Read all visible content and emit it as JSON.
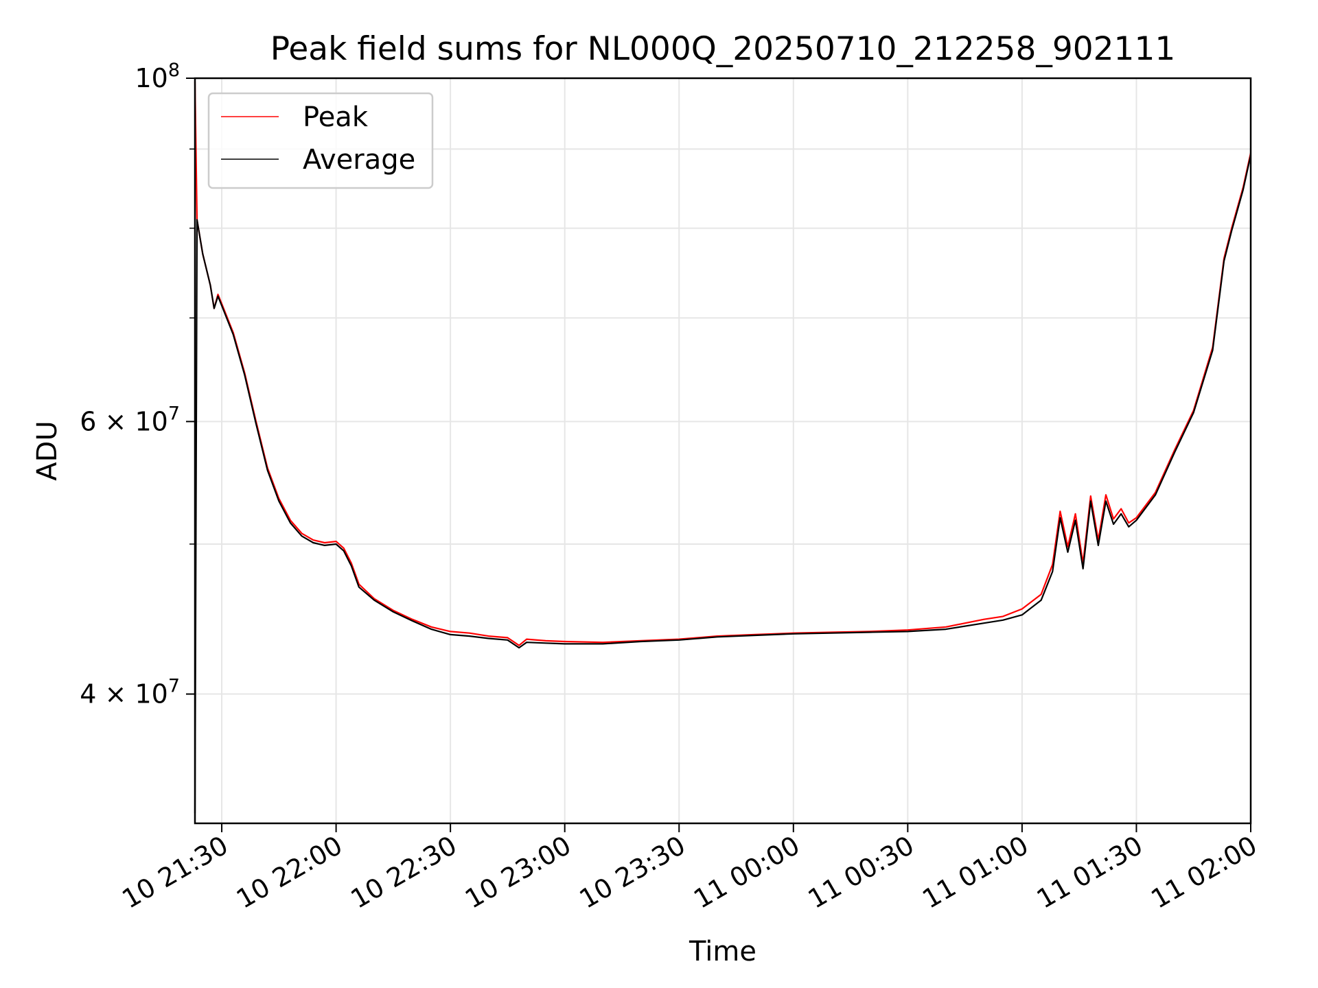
{
  "chart_data": {
    "type": "line",
    "title": "Peak field sums for NL000Q_20250710_212258_902111",
    "xlabel": "Time",
    "ylabel": "ADU",
    "yscale": "log",
    "ylim": [
      33000000,
      100000000
    ],
    "xlim": [
      "2025-07-10 21:22:58",
      "2025-07-11 02:00:00"
    ],
    "grid": true,
    "legend_placement": "top-left",
    "x_tick_labels": [
      "10 21:30",
      "10 22:00",
      "10 22:30",
      "10 23:00",
      "10 23:30",
      "11 00:00",
      "11 00:30",
      "11 01:00",
      "11 01:30",
      "11 02:00"
    ],
    "x_tick_values": [
      "2025-07-10 21:30",
      "2025-07-10 22:00",
      "2025-07-10 22:30",
      "2025-07-10 23:00",
      "2025-07-10 23:30",
      "2025-07-11 00:00",
      "2025-07-11 00:30",
      "2025-07-11 01:00",
      "2025-07-11 01:30",
      "2025-07-11 02:00"
    ],
    "y_major_ticks": [
      {
        "value": 40000000,
        "mantissa": "4",
        "exp": "7"
      },
      {
        "value": 60000000,
        "mantissa": "6",
        "exp": "7"
      },
      {
        "value": 100000000,
        "mantissa": "",
        "exp": "8"
      }
    ],
    "y_minor_ticks": [
      50000000,
      70000000,
      80000000,
      90000000
    ],
    "series": [
      {
        "name": "Peak",
        "color": "#ff0000",
        "x": [
          "2025-07-10 21:22:58",
          "2025-07-10 21:23:30",
          "2025-07-10 21:25",
          "2025-07-10 21:27",
          "2025-07-10 21:28",
          "2025-07-10 21:29",
          "2025-07-10 21:30",
          "2025-07-10 21:33",
          "2025-07-10 21:36",
          "2025-07-10 21:39",
          "2025-07-10 21:42",
          "2025-07-10 21:45",
          "2025-07-10 21:48",
          "2025-07-10 21:51",
          "2025-07-10 21:54",
          "2025-07-10 21:57",
          "2025-07-10 22:00",
          "2025-07-10 22:02",
          "2025-07-10 22:04",
          "2025-07-10 22:06",
          "2025-07-10 22:10",
          "2025-07-10 22:15",
          "2025-07-10 22:20",
          "2025-07-10 22:25",
          "2025-07-10 22:30",
          "2025-07-10 22:35",
          "2025-07-10 22:40",
          "2025-07-10 22:45",
          "2025-07-10 22:48",
          "2025-07-10 22:50",
          "2025-07-10 22:55",
          "2025-07-10 23:00",
          "2025-07-10 23:10",
          "2025-07-10 23:20",
          "2025-07-10 23:30",
          "2025-07-10 23:40",
          "2025-07-10 23:50",
          "2025-07-11 00:00",
          "2025-07-11 00:10",
          "2025-07-11 00:20",
          "2025-07-11 00:30",
          "2025-07-11 00:40",
          "2025-07-11 00:50",
          "2025-07-11 00:55",
          "2025-07-11 01:00",
          "2025-07-11 01:05",
          "2025-07-11 01:08",
          "2025-07-11 01:10",
          "2025-07-11 01:12",
          "2025-07-11 01:14",
          "2025-07-11 01:16",
          "2025-07-11 01:18",
          "2025-07-11 01:20",
          "2025-07-11 01:22",
          "2025-07-11 01:24",
          "2025-07-11 01:26",
          "2025-07-11 01:28",
          "2025-07-11 01:30",
          "2025-07-11 01:35",
          "2025-07-11 01:40",
          "2025-07-11 01:45",
          "2025-07-11 01:50",
          "2025-07-11 01:53",
          "2025-07-11 01:55",
          "2025-07-11 01:58",
          "2025-07-11 02:00"
        ],
        "y": [
          99500000,
          81000000,
          77000000,
          73500000,
          71000000,
          72500000,
          71500000,
          68500000,
          64500000,
          60000000,
          56000000,
          53500000,
          51800000,
          50800000,
          50300000,
          50100000,
          50200000,
          49700000,
          48600000,
          47100000,
          46100000,
          45300000,
          44700000,
          44200000,
          43900000,
          43800000,
          43600000,
          43500000,
          43000000,
          43400000,
          43300000,
          43250000,
          43200000,
          43300000,
          43400000,
          43600000,
          43700000,
          43800000,
          43850000,
          43900000,
          44000000,
          44200000,
          44700000,
          44900000,
          45400000,
          46400000,
          48500000,
          52500000,
          49800000,
          52300000,
          48600000,
          53700000,
          50300000,
          53800000,
          51900000,
          52700000,
          51600000,
          52000000,
          54000000,
          57500000,
          61000000,
          67000000,
          76500000,
          80000000,
          85000000,
          89500000
        ]
      },
      {
        "name": "Average",
        "color": "#000000",
        "x": [
          "2025-07-10 21:22:58",
          "2025-07-10 21:23:30",
          "2025-07-10 21:25",
          "2025-07-10 21:27",
          "2025-07-10 21:28",
          "2025-07-10 21:29",
          "2025-07-10 21:30",
          "2025-07-10 21:33",
          "2025-07-10 21:36",
          "2025-07-10 21:39",
          "2025-07-10 21:42",
          "2025-07-10 21:45",
          "2025-07-10 21:48",
          "2025-07-10 21:51",
          "2025-07-10 21:54",
          "2025-07-10 21:57",
          "2025-07-10 22:00",
          "2025-07-10 22:02",
          "2025-07-10 22:04",
          "2025-07-10 22:06",
          "2025-07-10 22:10",
          "2025-07-10 22:15",
          "2025-07-10 22:20",
          "2025-07-10 22:25",
          "2025-07-10 22:30",
          "2025-07-10 22:35",
          "2025-07-10 22:40",
          "2025-07-10 22:45",
          "2025-07-10 22:48",
          "2025-07-10 22:50",
          "2025-07-10 22:55",
          "2025-07-10 23:00",
          "2025-07-10 23:10",
          "2025-07-10 23:20",
          "2025-07-10 23:30",
          "2025-07-10 23:40",
          "2025-07-10 23:50",
          "2025-07-11 00:00",
          "2025-07-11 00:10",
          "2025-07-11 00:20",
          "2025-07-11 00:30",
          "2025-07-11 00:40",
          "2025-07-11 00:50",
          "2025-07-11 00:55",
          "2025-07-11 01:00",
          "2025-07-11 01:05",
          "2025-07-11 01:08",
          "2025-07-11 01:10",
          "2025-07-11 01:12",
          "2025-07-11 01:14",
          "2025-07-11 01:16",
          "2025-07-11 01:18",
          "2025-07-11 01:20",
          "2025-07-11 01:22",
          "2025-07-11 01:24",
          "2025-07-11 01:26",
          "2025-07-11 01:28",
          "2025-07-11 01:30",
          "2025-07-11 01:35",
          "2025-07-11 01:40",
          "2025-07-11 01:45",
          "2025-07-11 01:50",
          "2025-07-11 01:53",
          "2025-07-11 01:55",
          "2025-07-11 01:58",
          "2025-07-11 02:00"
        ],
        "y": [
          33500000,
          81000000,
          77000000,
          73500000,
          71000000,
          72300000,
          71300000,
          68300000,
          64300000,
          59800000,
          55800000,
          53300000,
          51600000,
          50600000,
          50100000,
          49900000,
          50000000,
          49500000,
          48400000,
          46900000,
          46000000,
          45200000,
          44600000,
          44050000,
          43700000,
          43600000,
          43450000,
          43350000,
          42850000,
          43200000,
          43150000,
          43100000,
          43100000,
          43250000,
          43350000,
          43550000,
          43650000,
          43750000,
          43800000,
          43850000,
          43900000,
          44050000,
          44450000,
          44650000,
          45000000,
          46000000,
          48000000,
          52000000,
          49400000,
          51800000,
          48200000,
          53300000,
          49900000,
          53300000,
          51500000,
          52300000,
          51300000,
          51800000,
          53800000,
          57300000,
          60800000,
          66700000,
          76200000,
          79700000,
          84700000,
          89200000
        ]
      }
    ]
  }
}
